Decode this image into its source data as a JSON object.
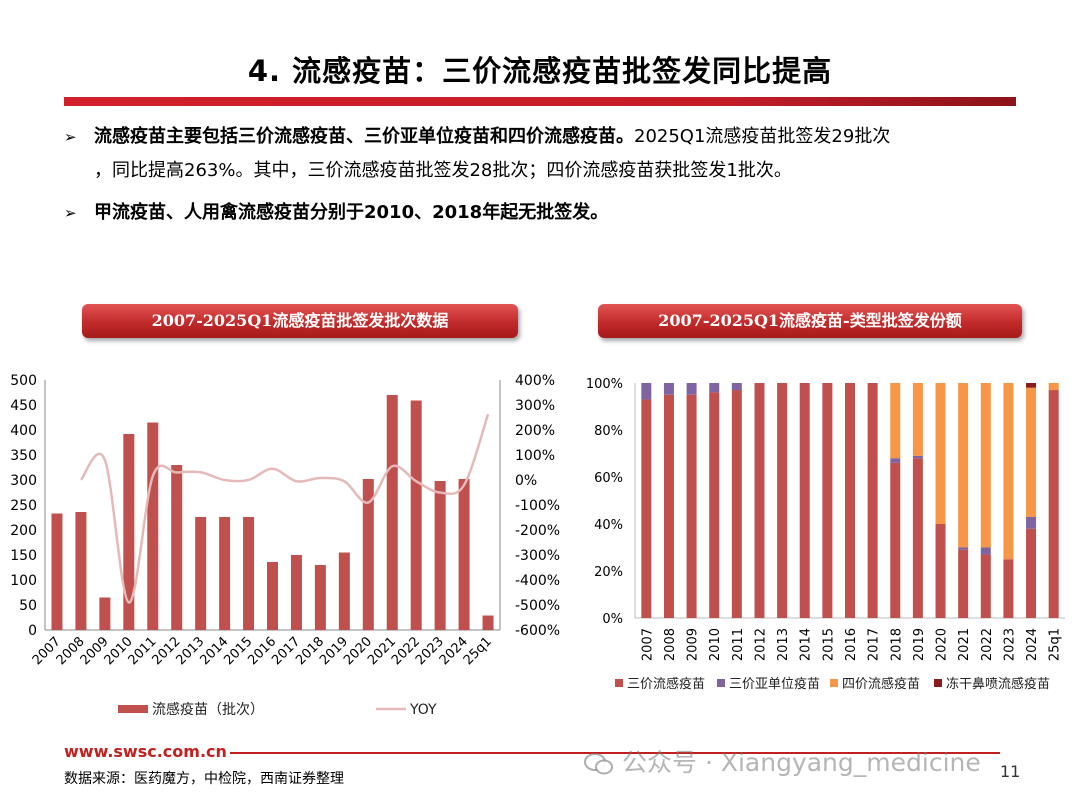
{
  "title": "4. 流感疫苗：三价流感疫苗批签发同比提高",
  "bullets": {
    "b1_bold": "流感疫苗主要包括三价流感疫苗、三价亚单位疫苗和四价流感疫苗。",
    "b1_rest": "2025Q1流感疫苗批签发29批次",
    "b1_cont": "，同比提高263%。其中，三价流感疫苗批签发28批次；四价流感疫苗获批签发1批次。",
    "b2_bold": "甲流疫苗、人用禽流感疫苗分别于2010、2018年起无批签发。"
  },
  "colors": {
    "bar": "#c0504d",
    "yoy": "#e6b9b8",
    "tri": "#c0504d",
    "sub": "#8064a2",
    "quad": "#f79646",
    "nasal": "#8b1a1a"
  },
  "chart_data": [
    {
      "type": "bar",
      "title": "2007-2025Q1流感疫苗批签发批次数据",
      "categories": [
        "2007",
        "2008",
        "2009",
        "2010",
        "2011",
        "2012",
        "2013",
        "2014",
        "2015",
        "2016",
        "2017",
        "2018",
        "2019",
        "2020",
        "2021",
        "2022",
        "2023",
        "2024",
        "25q1"
      ],
      "series": [
        {
          "name": "流感疫苗（批次）",
          "axis": "left",
          "type": "bar",
          "values": [
            233,
            236,
            65,
            392,
            415,
            330,
            226,
            226,
            226,
            136,
            150,
            130,
            155,
            302,
            470,
            459,
            298,
            302,
            29
          ]
        },
        {
          "name": "YOY",
          "axis": "right",
          "type": "line",
          "values": [
            null,
            1,
            80,
            -490,
            15,
            30,
            31,
            0,
            0,
            45,
            -5,
            8,
            -5,
            -90,
            55,
            -5,
            -50,
            -20,
            263
          ]
        }
      ],
      "ylim_left": [
        0,
        500
      ],
      "yticks_left": [
        "0",
        "50",
        "100",
        "150",
        "200",
        "250",
        "300",
        "350",
        "400",
        "450",
        "500"
      ],
      "ylim_right": [
        -600,
        400
      ],
      "yticks_right": [
        "-600%",
        "-500%",
        "-400%",
        "-300%",
        "-200%",
        "-100%",
        "0%",
        "100%",
        "200%",
        "300%",
        "400%"
      ],
      "grid": false,
      "legend_position": "bottom"
    },
    {
      "type": "bar",
      "stacked": true,
      "title": "2007-2025Q1流感疫苗-类型批签发份额",
      "categories": [
        "2007",
        "2008",
        "2009",
        "2010",
        "2011",
        "2012",
        "2013",
        "2014",
        "2015",
        "2016",
        "2017",
        "2018",
        "2019",
        "2020",
        "2021",
        "2022",
        "2023",
        "2024",
        "25q1"
      ],
      "series": [
        {
          "name": "三价流感疫苗",
          "values": [
            93,
            95,
            95,
            96,
            97,
            100,
            100,
            100,
            100,
            100,
            100,
            66,
            68,
            40,
            29,
            27,
            25,
            38,
            97
          ]
        },
        {
          "name": "三价亚单位疫苗",
          "values": [
            7,
            5,
            5,
            4,
            3,
            0,
            0,
            0,
            0,
            0,
            0,
            2,
            1,
            0,
            1,
            3,
            0,
            5,
            0
          ]
        },
        {
          "name": "四价流感疫苗",
          "values": [
            0,
            0,
            0,
            0,
            0,
            0,
            0,
            0,
            0,
            0,
            0,
            32,
            31,
            60,
            70,
            70,
            75,
            55,
            3
          ]
        },
        {
          "name": "冻干鼻喷流感疫苗",
          "values": [
            0,
            0,
            0,
            0,
            0,
            0,
            0,
            0,
            0,
            0,
            0,
            0,
            0,
            0,
            0,
            0,
            0,
            2,
            0
          ]
        }
      ],
      "ylim": [
        0,
        100
      ],
      "yticks": [
        "0%",
        "20%",
        "40%",
        "60%",
        "80%",
        "100%"
      ],
      "grid": false,
      "legend_position": "bottom"
    }
  ],
  "footer": {
    "url": "www.swsc.com.cn",
    "source": "数据来源：医药魔方，中检院，西南证券整理",
    "page": "11",
    "watermark": "公众号 · Xiangyang_medicine"
  }
}
